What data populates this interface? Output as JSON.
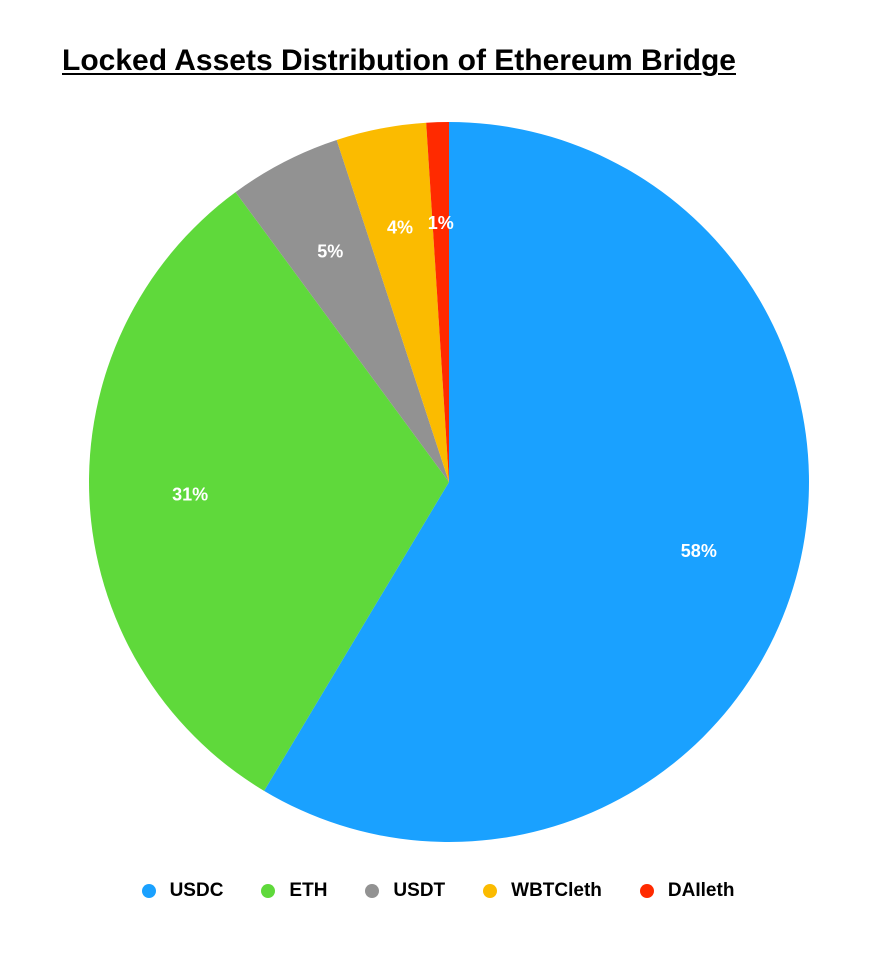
{
  "chart_data": {
    "type": "pie",
    "title": "Locked Assets Distribution of Ethereum Bridge",
    "categories": [
      "USDC",
      "ETH",
      "USDT",
      "WBTCleth",
      "DAIleth"
    ],
    "values": [
      58,
      31,
      5,
      4,
      1
    ],
    "labels": [
      "58%",
      "31%",
      "5%",
      "4%",
      "1%"
    ],
    "colors": [
      "#1aa1ff",
      "#5fd93b",
      "#929292",
      "#fbbb00",
      "#ff2a00"
    ],
    "legend_position": "bottom",
    "start_angle_deg": 0,
    "direction": "clockwise"
  }
}
